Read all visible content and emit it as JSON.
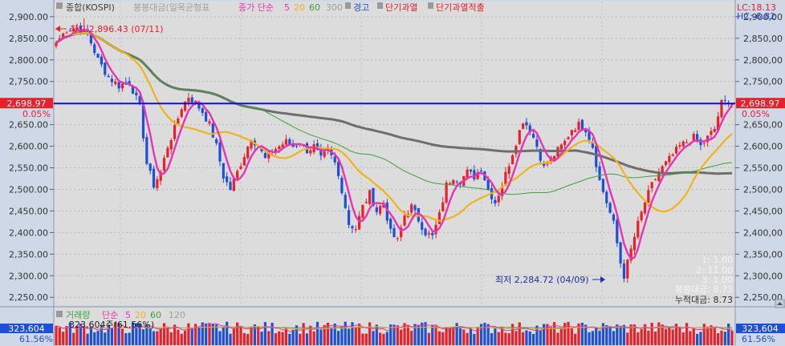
{
  "legend": {
    "main_label": "종합(KOSPI)",
    "candle_label": "봉봉대금(일목균형표",
    "ma_prefix": "종가 단순",
    "ma5": "5",
    "ma20": "20",
    "ma60": "60",
    "ma300": "300",
    "alert": "경고",
    "short_overheat": "단기과열",
    "short_overheat_detect": "단기과열적출"
  },
  "top_right": {
    "lc": "LC:18.13",
    "hc": "HC:-6.82"
  },
  "price_box": {
    "value": "2,698.97",
    "change": "0.05%"
  },
  "annotations": {
    "high_label": "최고 2,896.43 (07/11)",
    "low_label": "최저 2,284.72 (04/09)"
  },
  "info_lines": [
    "1: 1.00",
    "2: 11.00",
    "3: 1.00",
    "봉봉대금: 8.73",
    "누적대금: 8.73"
  ],
  "volume": {
    "legend_label": "거래량",
    "ma_prefix": "단순",
    "ma5": "5",
    "ma20": "20",
    "ma60": "60",
    "ma120": "120",
    "box_value": "323,604",
    "box_pct": "61.56%",
    "overlay_text": "323,604주(61.56%)"
  },
  "colors": {
    "up": "#e8202a",
    "down": "#1d4fd8",
    "ma5": "#e535b4",
    "ma20": "#f2b21c",
    "ma60": "#3aa33a",
    "ma300": "#6e6e6e",
    "hline": "#1010d8"
  },
  "chart_data": {
    "type": "candlestick",
    "y_ticks": [
      "2,900.00",
      "2,850.00",
      "2,800.00",
      "2,750.00",
      "2,700.00",
      "2,650.00",
      "2,600.00",
      "2,550.00",
      "2,500.00",
      "2,450.00",
      "2,400.00",
      "2,350.00",
      "2,300.00",
      "2,250.00"
    ],
    "y_right_ticks": [
      "2,900,00",
      "2,850,00",
      "2,800,00",
      "2,750,00",
      "2,700,00",
      "2,650,00",
      "2,600,00",
      "2,550,00",
      "2,500,00",
      "2,450,00",
      "2,400,00",
      "2,350,00",
      "2,300,00",
      "2,250,00"
    ],
    "ylim": [
      2230,
      2935
    ],
    "horizontal_line": 2698.97,
    "high": {
      "value": 2896.43,
      "date": "07/11"
    },
    "low": {
      "value": 2284.72,
      "date": "04/09"
    },
    "close_anchors": [
      [
        0,
        2840
      ],
      [
        3,
        2870
      ],
      [
        6,
        2875
      ],
      [
        9,
        2860
      ],
      [
        12,
        2800
      ],
      [
        15,
        2760
      ],
      [
        18,
        2740
      ],
      [
        21,
        2750
      ],
      [
        24,
        2690
      ],
      [
        26,
        2560
      ],
      [
        28,
        2510
      ],
      [
        30,
        2540
      ],
      [
        32,
        2600
      ],
      [
        34,
        2640
      ],
      [
        36,
        2690
      ],
      [
        38,
        2715
      ],
      [
        40,
        2700
      ],
      [
        42,
        2680
      ],
      [
        44,
        2650
      ],
      [
        46,
        2600
      ],
      [
        48,
        2530
      ],
      [
        50,
        2500
      ],
      [
        52,
        2540
      ],
      [
        54,
        2580
      ],
      [
        56,
        2620
      ],
      [
        58,
        2600
      ],
      [
        60,
        2570
      ],
      [
        62,
        2590
      ],
      [
        64,
        2600
      ],
      [
        66,
        2610
      ],
      [
        68,
        2600
      ],
      [
        70,
        2610
      ],
      [
        72,
        2590
      ],
      [
        74,
        2600
      ],
      [
        76,
        2570
      ],
      [
        78,
        2590
      ],
      [
        80,
        2560
      ],
      [
        82,
        2500
      ],
      [
        84,
        2420
      ],
      [
        86,
        2410
      ],
      [
        88,
        2460
      ],
      [
        90,
        2490
      ],
      [
        92,
        2450
      ],
      [
        94,
        2470
      ],
      [
        96,
        2400
      ],
      [
        98,
        2380
      ],
      [
        100,
        2440
      ],
      [
        102,
        2460
      ],
      [
        104,
        2430
      ],
      [
        106,
        2400
      ],
      [
        108,
        2390
      ],
      [
        110,
        2440
      ],
      [
        112,
        2510
      ],
      [
        114,
        2530
      ],
      [
        116,
        2520
      ],
      [
        118,
        2540
      ],
      [
        120,
        2530
      ],
      [
        122,
        2550
      ],
      [
        124,
        2500
      ],
      [
        126,
        2470
      ],
      [
        128,
        2510
      ],
      [
        130,
        2560
      ],
      [
        132,
        2610
      ],
      [
        134,
        2660
      ],
      [
        136,
        2640
      ],
      [
        138,
        2600
      ],
      [
        140,
        2550
      ],
      [
        142,
        2570
      ],
      [
        144,
        2590
      ],
      [
        146,
        2610
      ],
      [
        148,
        2640
      ],
      [
        150,
        2650
      ],
      [
        152,
        2640
      ],
      [
        154,
        2600
      ],
      [
        156,
        2520
      ],
      [
        158,
        2470
      ],
      [
        160,
        2420
      ],
      [
        162,
        2330
      ],
      [
        163,
        2300
      ],
      [
        165,
        2360
      ],
      [
        167,
        2420
      ],
      [
        169,
        2470
      ],
      [
        171,
        2510
      ],
      [
        173,
        2540
      ],
      [
        175,
        2560
      ],
      [
        177,
        2580
      ],
      [
        179,
        2600
      ],
      [
        181,
        2610
      ],
      [
        183,
        2620
      ],
      [
        185,
        2600
      ],
      [
        187,
        2620
      ],
      [
        189,
        2640
      ],
      [
        191,
        2700
      ],
      [
        193,
        2705
      ],
      [
        194,
        2698.97
      ]
    ]
  }
}
